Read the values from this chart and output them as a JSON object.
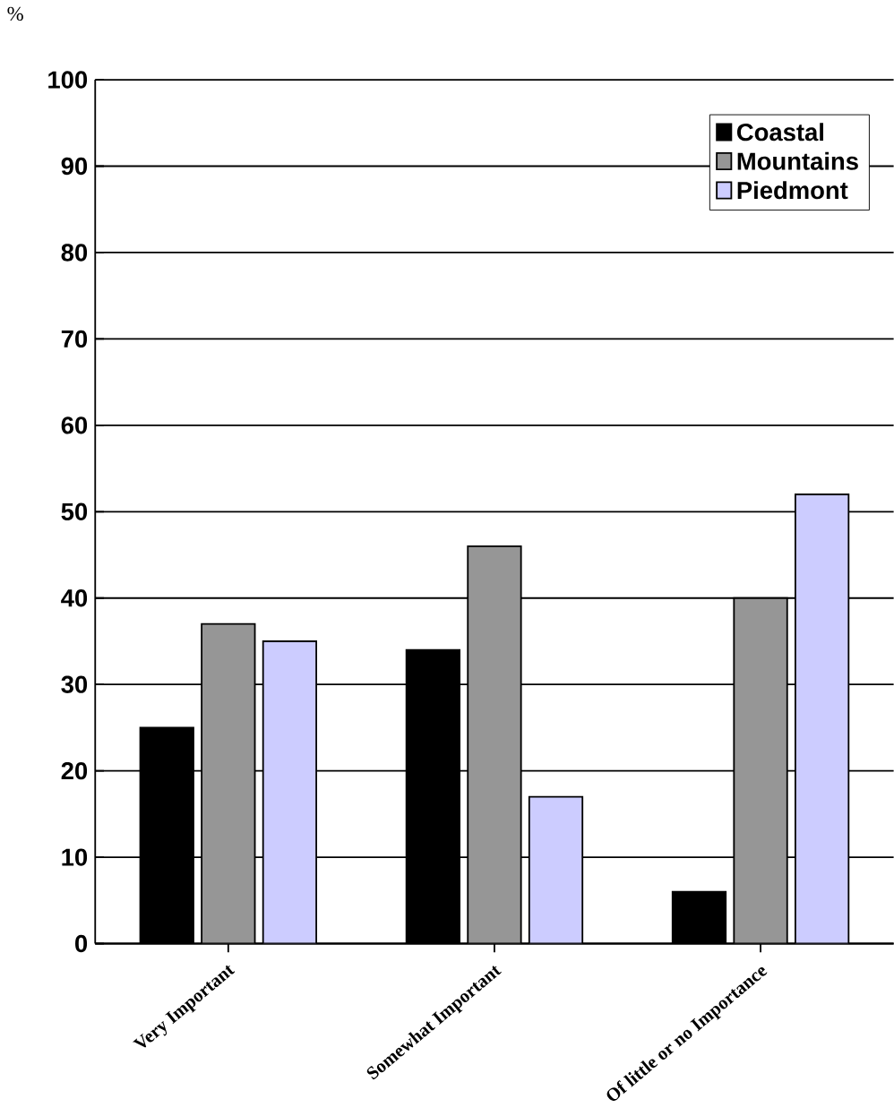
{
  "chart_data": {
    "type": "bar",
    "ylabel": "%",
    "categories": [
      "Very Important",
      "Somewhat Important",
      "Of little or no Importance"
    ],
    "series": [
      {
        "name": "Coastal",
        "color": "#000000",
        "values": [
          25,
          34,
          6
        ]
      },
      {
        "name": "Mountains",
        "color": "#969696",
        "values": [
          37,
          46,
          40
        ]
      },
      {
        "name": "Piedmont",
        "color": "#ccccff",
        "values": [
          35,
          17,
          52
        ]
      }
    ],
    "ylim": [
      0,
      100
    ],
    "yticks": [
      0,
      10,
      20,
      30,
      40,
      50,
      60,
      70,
      80,
      90,
      100
    ],
    "grid": "y",
    "legend": "top right"
  }
}
